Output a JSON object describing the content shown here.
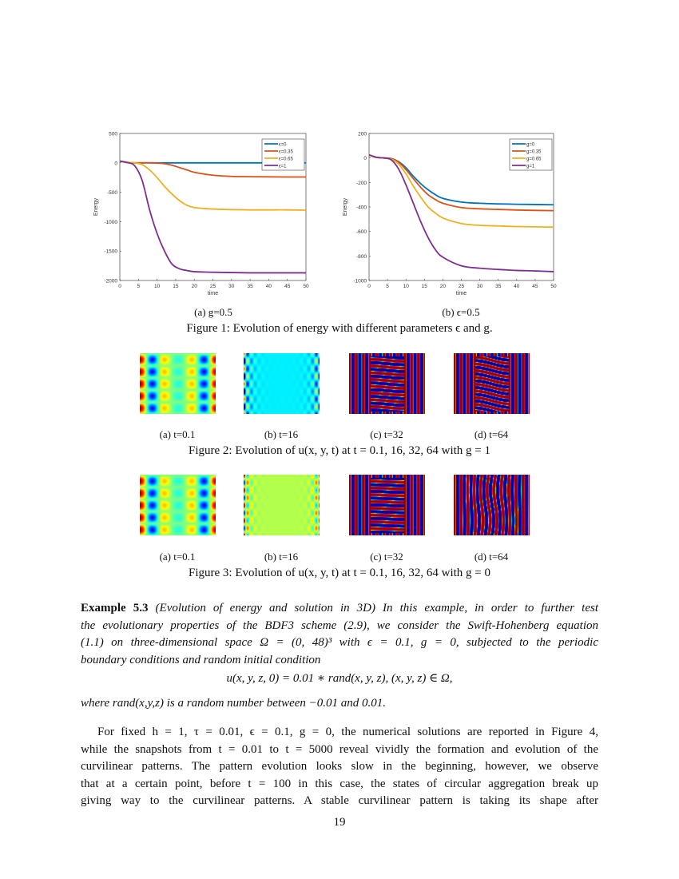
{
  "chart_data": [
    {
      "type": "line",
      "xlabel": "time",
      "ylabel": "Energy",
      "xlim": [
        0,
        50
      ],
      "ylim": [
        -2000,
        500
      ],
      "xticks": [
        0,
        5,
        10,
        15,
        20,
        25,
        30,
        35,
        40,
        45,
        50
      ],
      "yticks": [
        500,
        0,
        -500,
        -1000,
        -1500,
        -2000
      ],
      "legend_position": "top-right",
      "x": [
        0,
        2,
        4,
        6,
        8,
        10,
        12,
        14,
        16,
        18,
        20,
        25,
        30,
        35,
        40,
        45,
        50
      ],
      "series": [
        {
          "name": "ϵ=0",
          "color": "#0072BD",
          "values": [
            30,
            5,
            0,
            0,
            0,
            0,
            0,
            0,
            0,
            0,
            0,
            0,
            0,
            0,
            0,
            0,
            0
          ]
        },
        {
          "name": "ϵ=0.35",
          "color": "#D95319",
          "values": [
            30,
            5,
            0,
            0,
            0,
            -5,
            -15,
            -40,
            -80,
            -120,
            -160,
            -210,
            -230,
            -235,
            -238,
            -240,
            -240
          ]
        },
        {
          "name": "ϵ=0.65",
          "color": "#EDB120",
          "values": [
            30,
            10,
            0,
            -30,
            -120,
            -250,
            -400,
            -530,
            -640,
            -720,
            -760,
            -785,
            -795,
            -800,
            -800,
            -800,
            -805
          ]
        },
        {
          "name": "ϵ=1",
          "color": "#7E2F8E",
          "values": [
            30,
            5,
            -50,
            -300,
            -800,
            -1200,
            -1500,
            -1720,
            -1800,
            -1830,
            -1850,
            -1860,
            -1865,
            -1870,
            -1870,
            -1870,
            -1870
          ]
        }
      ]
    },
    {
      "type": "line",
      "xlabel": "time",
      "ylabel": "Energy",
      "xlim": [
        0,
        50
      ],
      "ylim": [
        -1000,
        200
      ],
      "xticks": [
        0,
        5,
        10,
        15,
        20,
        25,
        30,
        35,
        40,
        45,
        50
      ],
      "yticks": [
        200,
        0,
        -200,
        -400,
        -600,
        -800,
        -1000
      ],
      "legend_position": "top-right",
      "x": [
        0,
        2,
        4,
        6,
        8,
        10,
        12,
        14,
        16,
        18,
        20,
        25,
        30,
        35,
        40,
        45,
        50
      ],
      "series": [
        {
          "name": "g=0",
          "color": "#0072BD",
          "values": [
            25,
            5,
            0,
            -5,
            -30,
            -80,
            -150,
            -210,
            -260,
            -300,
            -330,
            -360,
            -370,
            -375,
            -378,
            -380,
            -382
          ]
        },
        {
          "name": "g=0.35",
          "color": "#D95319",
          "values": [
            25,
            5,
            0,
            -5,
            -35,
            -95,
            -170,
            -240,
            -300,
            -340,
            -370,
            -405,
            -415,
            -420,
            -425,
            -428,
            -430
          ]
        },
        {
          "name": "g=0.65",
          "color": "#EDB120",
          "values": [
            25,
            5,
            0,
            -10,
            -50,
            -130,
            -230,
            -320,
            -400,
            -450,
            -490,
            -535,
            -550,
            -555,
            -560,
            -562,
            -565
          ]
        },
        {
          "name": "g=1",
          "color": "#7E2F8E",
          "values": [
            25,
            5,
            0,
            -15,
            -90,
            -220,
            -370,
            -520,
            -650,
            -750,
            -810,
            -880,
            -900,
            -910,
            -918,
            -922,
            -928
          ]
        }
      ]
    }
  ],
  "fig1": {
    "sub_a": "(a) g=0.5",
    "sub_b": "(b) ϵ=0.5",
    "caption": "Figure 1:   Evolution of energy with different parameters ϵ and g."
  },
  "fig2": {
    "subs": [
      "(a) t=0.1",
      "(b) t=16",
      "(c) t=32",
      "(d) t=64"
    ],
    "caption": "Figure 2: Evolution of u(x, y, t) at t = 0.1, 16, 32, 64 with g = 1"
  },
  "fig3": {
    "subs": [
      "(a) t=0.1",
      "(b) t=16",
      "(c) t=32",
      "(d) t=64"
    ],
    "caption": "Figure 3: Evolution of u(x, y, t) at t = 0.1, 16, 32, 64 with g = 0"
  },
  "example": {
    "label": "Example 5.3",
    "lines": [
      " (Evolution of energy and solution in 3D) In this example, in order to further test",
      "the evolutionary properties of the BDF3 scheme (2.9), we consider the Swift-Hohenberg equation",
      "(1.1) on three-dimensional space Ω = (0, 48)³ with ϵ = 0.1,  g = 0, subjected to the periodic",
      "boundary conditions and random initial condition"
    ],
    "equation": "u(x, y, z, 0) = 0.01 ∗ rand(x, y, z),        (x, y, z) ∈ Ω,",
    "where": "where rand(x,y,z) is a random number between −0.01 and 0.01."
  },
  "paragraph": [
    "For fixed h = 1, τ = 0.01, ϵ = 0.1,  g = 0, the numerical solutions are reported in Figure 4,",
    "while the snapshots from t = 0.01 to t = 5000 reveal vividly the formation and evolution of the",
    "curvilinear patterns.  The pattern evolution looks slow in the beginning, however, we observe",
    "that at a certain point, before t = 100 in this case, the states of circular aggregation break up",
    "giving way to the curvilinear patterns.  A stable curvilinear pattern is taking its shape after"
  ],
  "page_number": "19"
}
